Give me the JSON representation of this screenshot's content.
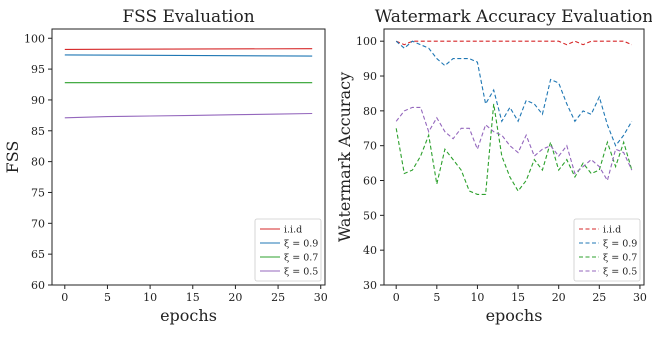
{
  "chart_data": [
    {
      "type": "line",
      "title": "FSS Evaluation",
      "xlabel": "epochs",
      "ylabel": "FSS",
      "xlim": [
        -1.5,
        30.5
      ],
      "ylim": [
        60,
        101.5
      ],
      "xticks": [
        0,
        5,
        10,
        15,
        20,
        25,
        30
      ],
      "yticks": [
        60,
        65,
        70,
        75,
        80,
        85,
        90,
        95,
        100
      ],
      "grid": false,
      "legend_position": "lower-right",
      "series": [
        {
          "name": "i.i.d",
          "label": "i.i.d",
          "color": "#d62728",
          "dash": "solid",
          "x": [
            0,
            29
          ],
          "y": [
            98.2,
            98.3
          ]
        },
        {
          "name": "ξ = 0.9",
          "label": "ξ = 0.9",
          "color": "#1f77b4",
          "dash": "solid",
          "x": [
            0,
            29
          ],
          "y": [
            97.3,
            97.1
          ]
        },
        {
          "name": "ξ = 0.7",
          "label": "ξ = 0.7",
          "color": "#2ca02c",
          "dash": "solid",
          "x": [
            0,
            29
          ],
          "y": [
            92.8,
            92.8
          ]
        },
        {
          "name": "ξ = 0.5",
          "label": "ξ = 0.5",
          "color": "#9467bd",
          "dash": "solid",
          "x": [
            0,
            5,
            10,
            15,
            20,
            25,
            29
          ],
          "y": [
            87.1,
            87.3,
            87.4,
            87.5,
            87.6,
            87.7,
            87.8
          ]
        }
      ]
    },
    {
      "type": "line",
      "title": "Watermark Accuracy Evaluation",
      "xlabel": "epochs",
      "ylabel": "Watermark Accuracy",
      "xlim": [
        -1.5,
        30.5
      ],
      "ylim": [
        30,
        103.5
      ],
      "xticks": [
        0,
        5,
        10,
        15,
        20,
        25,
        30
      ],
      "yticks": [
        30,
        40,
        50,
        60,
        70,
        80,
        90,
        100
      ],
      "grid": false,
      "legend_position": "lower-right",
      "series": [
        {
          "name": "i.i.d",
          "label": "i.i.d",
          "color": "#d62728",
          "dash": "dashed",
          "x": [
            0,
            1,
            2,
            3,
            4,
            5,
            6,
            7,
            8,
            9,
            10,
            11,
            12,
            13,
            14,
            15,
            16,
            17,
            18,
            19,
            20,
            21,
            22,
            23,
            24,
            25,
            26,
            27,
            28,
            29
          ],
          "y": [
            100,
            99,
            100,
            100,
            100,
            100,
            100,
            100,
            100,
            100,
            100,
            100,
            100,
            100,
            100,
            100,
            100,
            100,
            100,
            100,
            100,
            99,
            100,
            99,
            100,
            100,
            100,
            100,
            100,
            99
          ]
        },
        {
          "name": "ξ = 0.9",
          "label": "ξ = 0.9",
          "color": "#1f77b4",
          "dash": "dashed",
          "x": [
            0,
            1,
            2,
            3,
            4,
            5,
            6,
            7,
            8,
            9,
            10,
            11,
            12,
            13,
            14,
            15,
            16,
            17,
            18,
            19,
            20,
            21,
            22,
            23,
            24,
            25,
            26,
            27,
            28,
            29
          ],
          "y": [
            100,
            98,
            100,
            99,
            98,
            95,
            93,
            95,
            95,
            95,
            94,
            82,
            86,
            77,
            81,
            77,
            83,
            82,
            79,
            89,
            88,
            82,
            77,
            80,
            79,
            84,
            76,
            70,
            73,
            77
          ]
        },
        {
          "name": "ξ = 0.7",
          "label": "ξ = 0.7",
          "color": "#2ca02c",
          "dash": "dashed",
          "x": [
            0,
            1,
            2,
            3,
            4,
            5,
            6,
            7,
            8,
            9,
            10,
            11,
            12,
            13,
            14,
            15,
            16,
            17,
            18,
            19,
            20,
            21,
            22,
            23,
            24,
            25,
            26,
            27,
            28,
            29
          ],
          "y": [
            75,
            62,
            63,
            67,
            73,
            59,
            69,
            66,
            63,
            57,
            56,
            56,
            82,
            67,
            61,
            57,
            60,
            66,
            63,
            71,
            63,
            66,
            61,
            65,
            62,
            63,
            71,
            64,
            71,
            63
          ]
        },
        {
          "name": "ξ = 0.5",
          "label": "ξ = 0.5",
          "color": "#9467bd",
          "dash": "dashed",
          "x": [
            0,
            1,
            2,
            3,
            4,
            5,
            6,
            7,
            8,
            9,
            10,
            11,
            12,
            13,
            14,
            15,
            16,
            17,
            18,
            19,
            20,
            21,
            22,
            23,
            24,
            25,
            26,
            27,
            28,
            29
          ],
          "y": [
            77,
            80,
            81,
            81,
            74,
            78,
            74,
            72,
            75,
            75,
            69,
            76,
            74,
            73,
            70,
            68,
            73,
            67,
            69,
            70,
            67,
            70,
            62,
            64,
            66,
            64,
            60,
            69,
            68,
            63
          ]
        }
      ]
    }
  ]
}
